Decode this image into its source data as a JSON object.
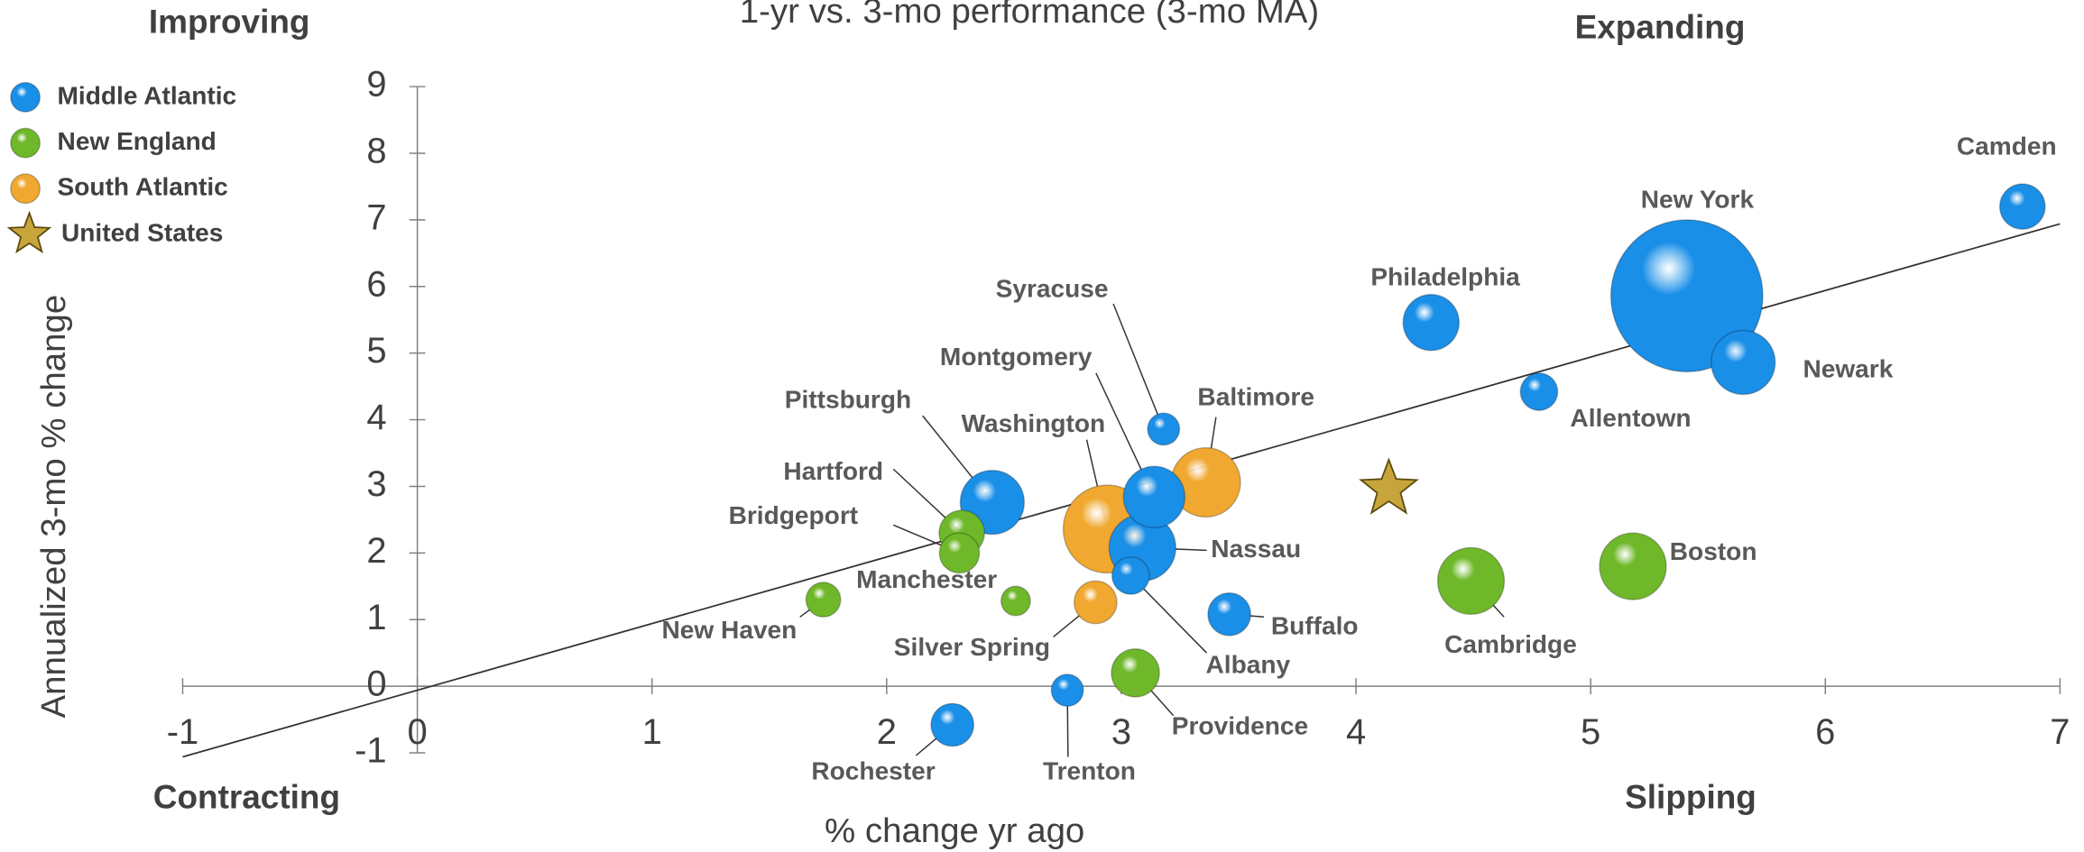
{
  "chart_data": {
    "type": "bubble",
    "title": "1-yr vs. 3-mo performance (3-mo MA)",
    "x_label": "% change  yr ago",
    "y_label": "Annualized  3-mo % change",
    "quadrant_labels": {
      "top_left": "Improving",
      "top_right": "Expanding",
      "bottom_left": "Contracting",
      "bottom_right": "Slipping"
    },
    "xlim": [
      -1,
      7
    ],
    "xticks": [
      -1,
      0,
      1,
      2,
      3,
      4,
      5,
      6,
      7
    ],
    "ylim": [
      -1,
      9
    ],
    "yticks": [
      -1,
      0,
      1,
      2,
      3,
      4,
      5,
      6,
      7,
      8,
      9
    ],
    "trend_line": {
      "x": [
        -1,
        7
      ],
      "y": [
        -1.06,
        6.94
      ]
    },
    "series": [
      {
        "name": "Middle Atlantic",
        "color": "#1a8fe8",
        "marker": "circle",
        "labels": [
          "Camden",
          "New York",
          "Newark",
          "Philadelphia",
          "Allentown",
          "Syracuse",
          "Montgomery",
          "Nassau",
          "Albany",
          "Pittsburgh",
          "Buffalo",
          "Trenton",
          "Rochester"
        ],
        "x": [
          6.84,
          5.41,
          5.65,
          4.32,
          4.78,
          3.18,
          3.14,
          3.09,
          3.04,
          2.45,
          3.46,
          2.77,
          2.28
        ],
        "values": [
          7.2,
          5.86,
          4.86,
          5.46,
          4.42,
          3.86,
          2.84,
          2.08,
          1.66,
          2.76,
          1.08,
          -0.06,
          -0.58
        ],
        "size": [
          17,
          57,
          24,
          21,
          14,
          12,
          23,
          25,
          14,
          24,
          16,
          12,
          16
        ]
      },
      {
        "name": "New England",
        "color": "#6fb82a",
        "marker": "circle",
        "labels": [
          "Hartford",
          "Bridgeport",
          "Manchester",
          "New Haven",
          "Providence",
          "Cambridge",
          "Boston"
        ],
        "x": [
          2.32,
          2.31,
          2.55,
          1.73,
          3.06,
          4.49,
          5.18
        ],
        "values": [
          2.3,
          2.0,
          1.28,
          1.3,
          0.2,
          1.58,
          1.8
        ],
        "size": [
          17,
          15,
          11,
          13,
          18,
          25,
          25
        ]
      },
      {
        "name": "South Atlantic",
        "color": "#f0a830",
        "marker": "circle",
        "labels": [
          "Baltimore",
          "Washington",
          "Silver Spring"
        ],
        "x": [
          3.36,
          2.94,
          2.89
        ],
        "values": [
          3.06,
          2.36,
          1.26
        ],
        "size": [
          26,
          33,
          16
        ]
      },
      {
        "name": "United States",
        "color": "#c8a53a",
        "marker": "star",
        "labels": [
          null
        ],
        "x": [
          4.14
        ],
        "values": [
          2.96
        ],
        "size": [
          22
        ]
      }
    ]
  }
}
